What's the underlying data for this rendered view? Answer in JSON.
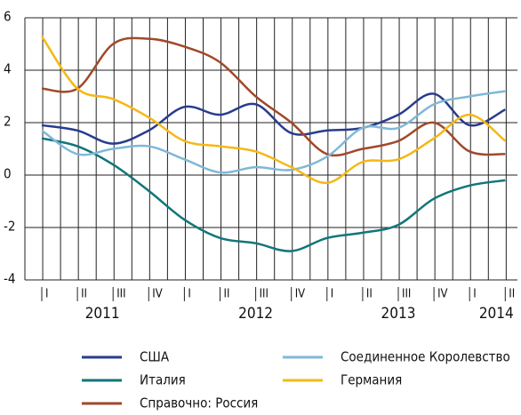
{
  "chart_data": {
    "type": "line",
    "categories": [
      "I",
      "II",
      "III",
      "IV",
      "I",
      "II",
      "III",
      "IV",
      "I",
      "II",
      "III",
      "IV",
      "I",
      "II"
    ],
    "year_labels": [
      "2011",
      "2012",
      "2013",
      "2014"
    ],
    "series": [
      {
        "name": "США",
        "color": "#283c8c",
        "values": [
          1.9,
          1.7,
          1.2,
          1.7,
          2.6,
          2.3,
          2.7,
          1.6,
          1.7,
          1.8,
          2.3,
          3.1,
          1.9,
          2.5
        ]
      },
      {
        "name": "Италия",
        "color": "#11767a",
        "values": [
          1.4,
          1.1,
          0.4,
          -0.6,
          -1.7,
          -2.4,
          -2.6,
          -2.9,
          -2.4,
          -2.2,
          -1.9,
          -0.9,
          -0.4,
          -0.2
        ]
      },
      {
        "name": "Справочно: Россия",
        "color": "#a0492b",
        "values": [
          3.3,
          3.3,
          5.0,
          5.2,
          4.9,
          4.3,
          3.0,
          2.0,
          0.8,
          1.0,
          1.3,
          2.0,
          0.9,
          0.8
        ]
      },
      {
        "name": "Соединенное Королевство",
        "color": "#7fb8d8",
        "values": [
          1.7,
          0.8,
          1.0,
          1.1,
          0.6,
          0.1,
          0.3,
          0.2,
          0.7,
          1.8,
          1.8,
          2.7,
          3.0,
          3.2
        ]
      },
      {
        "name": "Германия",
        "color": "#f5b814",
        "values": [
          5.3,
          3.3,
          2.9,
          2.2,
          1.3,
          1.1,
          0.9,
          0.3,
          -0.3,
          0.5,
          0.6,
          1.4,
          2.3,
          1.3
        ]
      }
    ],
    "ylim": [
      -4,
      6
    ],
    "yticks": [
      -4,
      -2,
      0,
      2,
      4,
      6
    ],
    "grid": true
  }
}
